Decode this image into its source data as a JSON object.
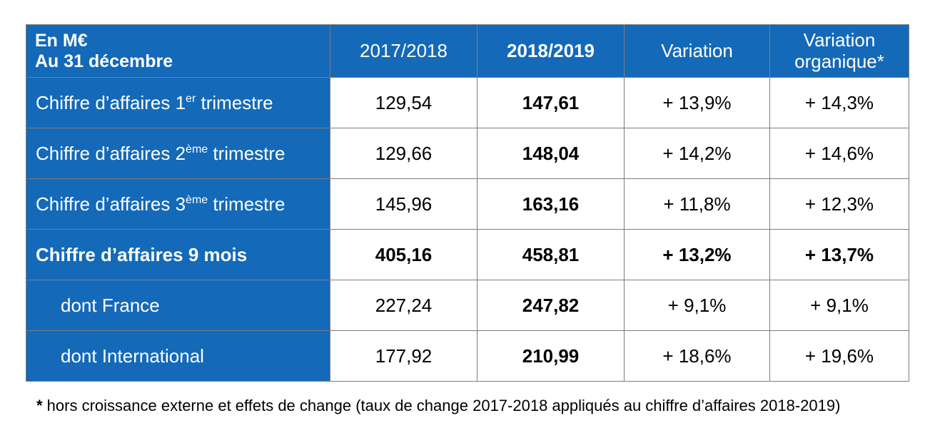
{
  "header": {
    "corner_line1": "En M€",
    "corner_line2": "Au 31 décembre",
    "col_2017": "2017/2018",
    "col_2018": "2018/2019",
    "col_variation": "Variation",
    "col_organic_line1": "Variation",
    "col_organic_line2": "organique*"
  },
  "rows": [
    {
      "label_main": "Chiffre d’affaires 1",
      "label_sup": "er",
      "label_tail": " trimestre",
      "v2017": "129,54",
      "v2018": "147,61",
      "variation": "+ 13,9%",
      "organic": "+ 14,3%"
    },
    {
      "label_main": "Chiffre d’affaires 2",
      "label_sup": "ème",
      "label_tail": " trimestre",
      "v2017": "129,66",
      "v2018": "148,04",
      "variation": "+ 14,2%",
      "organic": "+ 14,6%"
    },
    {
      "label_main": "Chiffre d’affaires 3",
      "label_sup": "ème",
      "label_tail": " trimestre",
      "v2017": "145,96",
      "v2018": "163,16",
      "variation": "+ 11,8%",
      "organic": "+ 12,3%"
    },
    {
      "label_main": "Chiffre d’affaires 9 mois",
      "v2017": "405,16",
      "v2018": "458,81",
      "variation": "+ 13,2%",
      "organic": "+ 13,7%"
    },
    {
      "label_main": "dont France",
      "v2017": "227,24",
      "v2018": "247,82",
      "variation": "+ 9,1%",
      "organic": "+ 9,1%"
    },
    {
      "label_main": "dont International",
      "v2017": "177,92",
      "v2018": "210,99",
      "variation": "+ 18,6%",
      "organic": "+ 19,6%"
    }
  ],
  "footnote": {
    "star": "*",
    "text": " hors croissance externe et effets de change (taux de change 2017-2018 appliqués au chiffre d’affaires 2018-2019)"
  },
  "colors": {
    "header_blue": "#1469b8",
    "border": "#7d7d7d"
  }
}
